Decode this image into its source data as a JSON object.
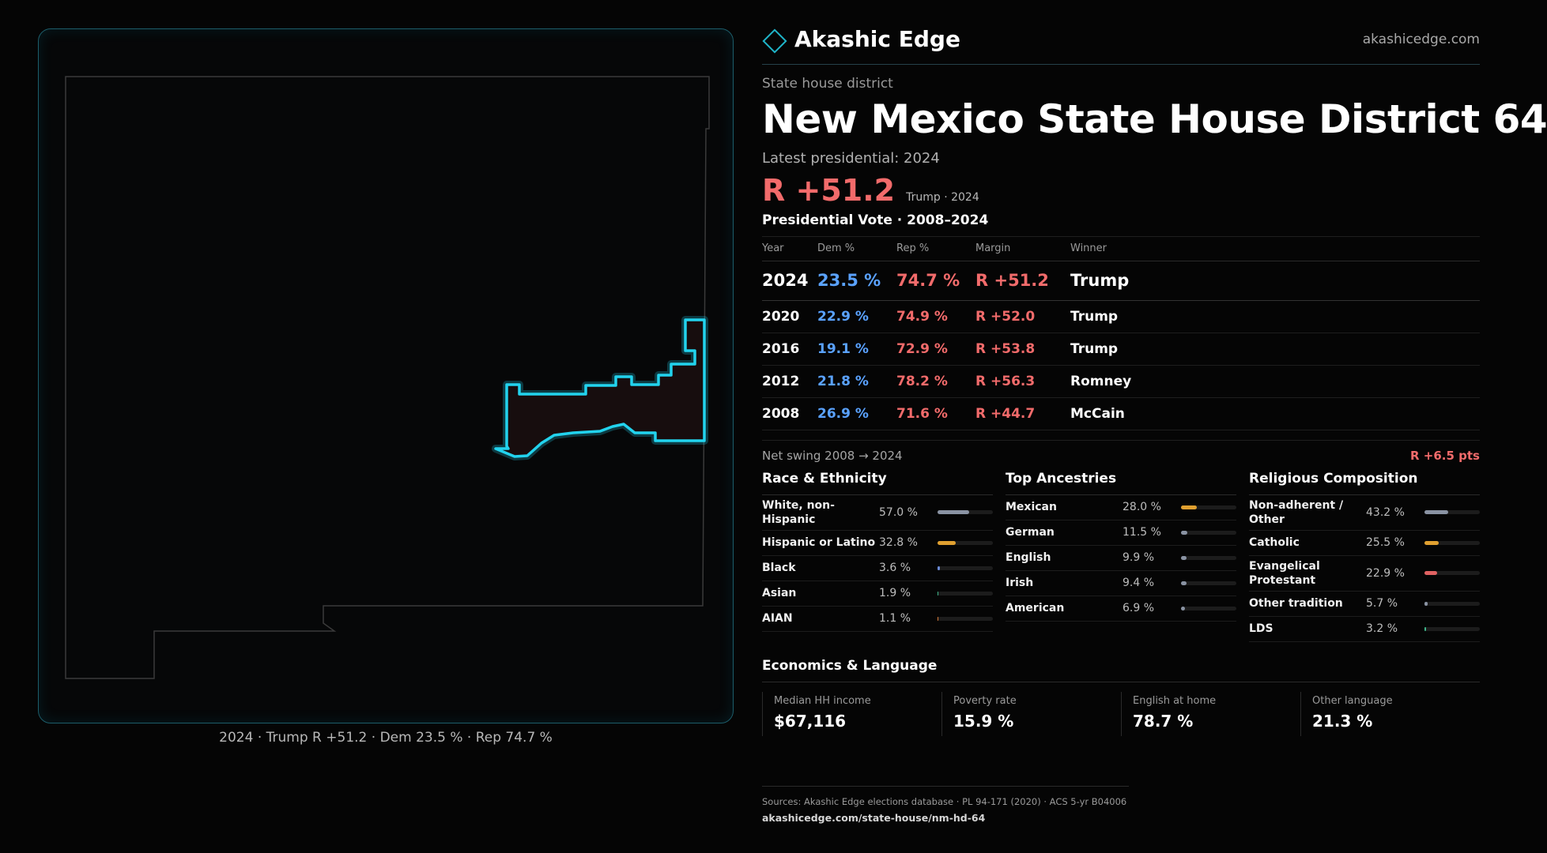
{
  "brand": {
    "name": "Akashic Edge",
    "url": "akashicedge.com"
  },
  "header": {
    "eyebrow": "State house district",
    "title": "New Mexico State House District 64",
    "latest_label": "Latest presidential: 2024",
    "margin": "R +51.2",
    "margin_sub": "Trump · 2024"
  },
  "votes": {
    "title": "Presidential Vote · 2008–2024",
    "columns": [
      "Year",
      "Dem %",
      "Rep %",
      "Margin",
      "Winner"
    ],
    "rows": [
      {
        "year": "2024",
        "dem": "23.5 %",
        "rep": "74.7 %",
        "margin": "R +51.2",
        "winner": "Trump"
      },
      {
        "year": "2020",
        "dem": "22.9 %",
        "rep": "74.9 %",
        "margin": "R +52.0",
        "winner": "Trump"
      },
      {
        "year": "2016",
        "dem": "19.1 %",
        "rep": "72.9 %",
        "margin": "R +53.8",
        "winner": "Trump"
      },
      {
        "year": "2012",
        "dem": "21.8 %",
        "rep": "78.2 %",
        "margin": "R +56.3",
        "winner": "Romney"
      },
      {
        "year": "2008",
        "dem": "26.9 %",
        "rep": "71.6 %",
        "margin": "R +44.7",
        "winner": "McCain"
      }
    ],
    "swing_label": "Net swing 2008 → 2024",
    "swing_value": "R +6.5 pts"
  },
  "demographics": [
    {
      "title": "Race & Ethnicity",
      "rows": [
        {
          "label": "White, non-Hispanic",
          "value": "57.0 %",
          "pct": 57.0,
          "color": "#8a93a3"
        },
        {
          "label": "Hispanic or Latino",
          "value": "32.8 %",
          "pct": 32.8,
          "color": "#e0a030"
        },
        {
          "label": "Black",
          "value": "3.6 %",
          "pct": 3.6,
          "color": "#6b8bd6"
        },
        {
          "label": "Asian",
          "value": "1.9 %",
          "pct": 1.9,
          "color": "#3fb58a"
        },
        {
          "label": "AIAN",
          "value": "1.1 %",
          "pct": 1.1,
          "color": "#d67a3a"
        }
      ]
    },
    {
      "title": "Top Ancestries",
      "rows": [
        {
          "label": "Mexican",
          "value": "28.0 %",
          "pct": 28.0,
          "color": "#e0a030"
        },
        {
          "label": "German",
          "value": "11.5 %",
          "pct": 11.5,
          "color": "#8a93a3"
        },
        {
          "label": "English",
          "value": "9.9 %",
          "pct": 9.9,
          "color": "#8a93a3"
        },
        {
          "label": "Irish",
          "value": "9.4 %",
          "pct": 9.4,
          "color": "#8a93a3"
        },
        {
          "label": "American",
          "value": "6.9 %",
          "pct": 6.9,
          "color": "#8a93a3"
        }
      ]
    },
    {
      "title": "Religious Composition",
      "rows": [
        {
          "label": "Non-adherent / Other",
          "value": "43.2 %",
          "pct": 43.2,
          "color": "#8a93a3"
        },
        {
          "label": "Catholic",
          "value": "25.5 %",
          "pct": 25.5,
          "color": "#e0a030"
        },
        {
          "label": "Evangelical Protestant",
          "value": "22.9 %",
          "pct": 22.9,
          "color": "#e06262"
        },
        {
          "label": "Other tradition",
          "value": "5.7 %",
          "pct": 5.7,
          "color": "#8a93a3"
        },
        {
          "label": "LDS",
          "value": "3.2 %",
          "pct": 3.2,
          "color": "#3fb58a"
        }
      ]
    }
  ],
  "economics": {
    "title": "Economics & Language",
    "cards": [
      {
        "label": "Median HH income",
        "value": "$67,116"
      },
      {
        "label": "Poverty rate",
        "value": "15.9 %"
      },
      {
        "label": "English at home",
        "value": "78.7 %"
      },
      {
        "label": "Other language",
        "value": "21.3 %"
      }
    ]
  },
  "map": {
    "caption": "2024 · Trump R +51.2 · Dem 23.5 % · Rep 74.7 %",
    "district_color": "#22d3ee",
    "outline_color": "#3a3a3a"
  },
  "sources": {
    "line1": "Sources: Akashic Edge elections database · PL 94-171 (2020) · ACS 5-yr B04006",
    "line2": "akashicedge.com/state-house/nm-hd-64"
  }
}
